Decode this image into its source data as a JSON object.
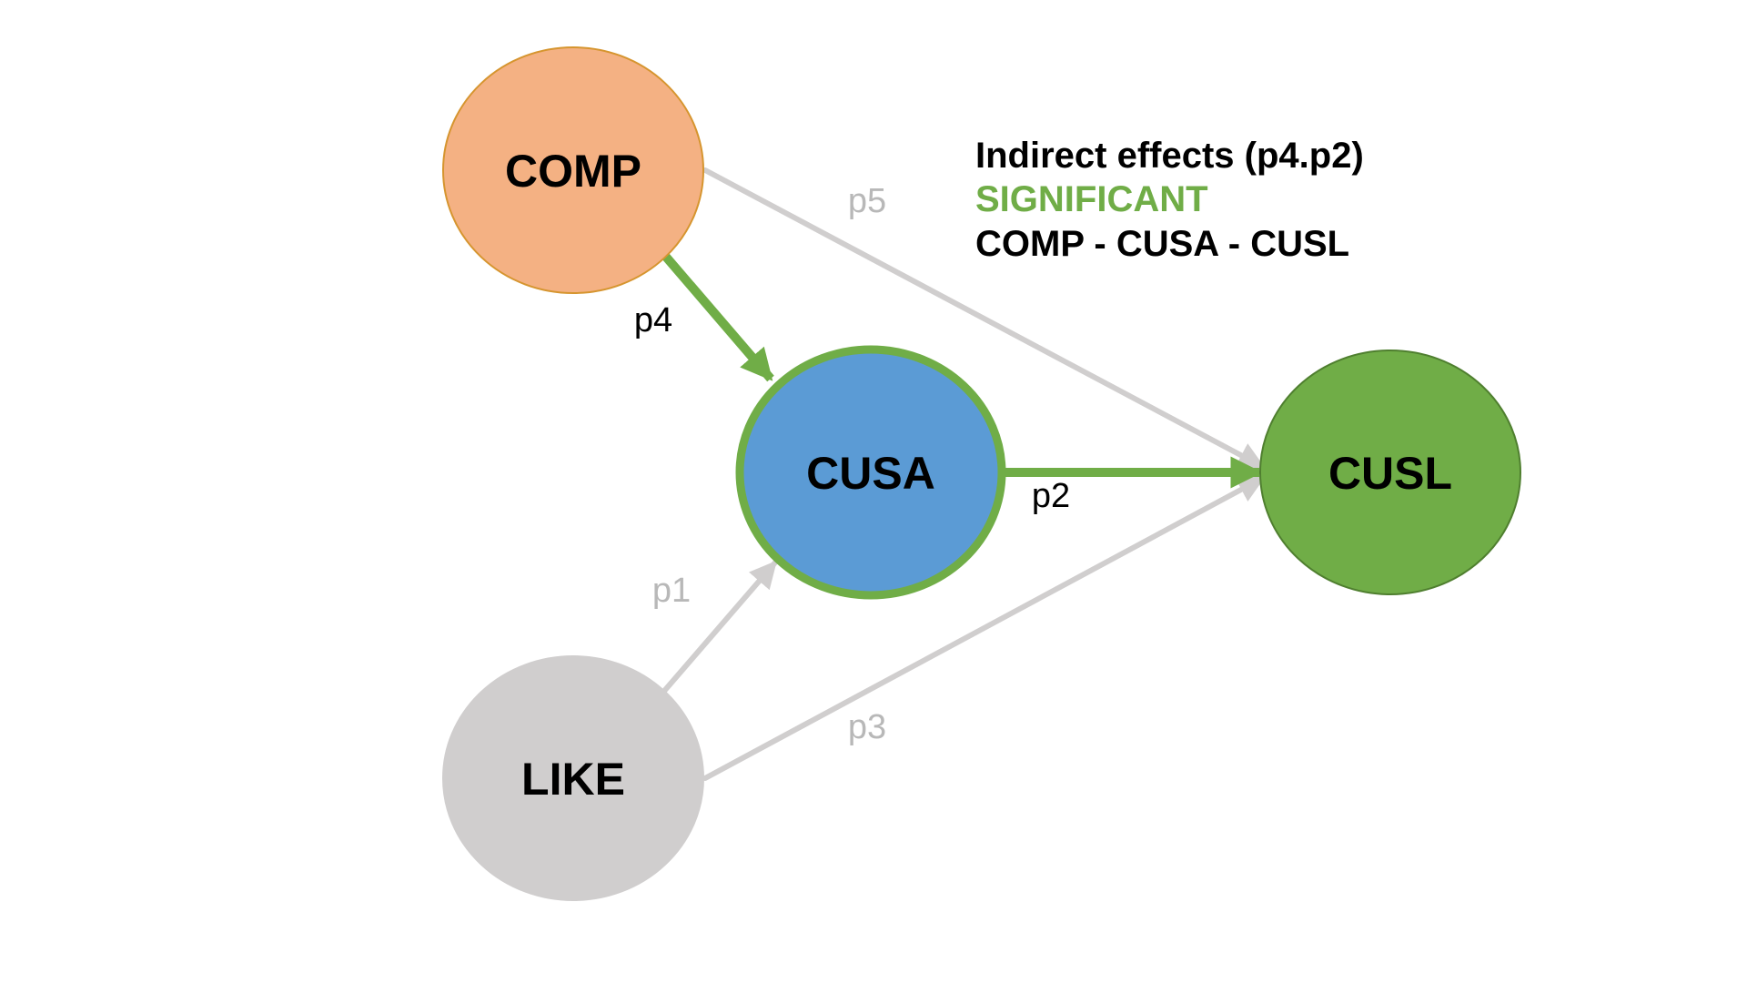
{
  "colors": {
    "significant": "#70ad47",
    "nonsignificant": "#d0cece",
    "edge_label_nonsignificant": "#b8b8b8",
    "text": "#000000"
  },
  "nodes": {
    "comp": {
      "label": "COMP",
      "fill": "#f4b183",
      "stroke": "#d6952f"
    },
    "cusa": {
      "label": "CUSA",
      "fill": "#5b9bd5",
      "stroke": "#70ad47"
    },
    "cusl": {
      "label": "CUSL",
      "fill": "#70ad47",
      "stroke": "#4f7f2f"
    },
    "like": {
      "label": "LIKE",
      "fill": "#d0cece",
      "stroke": "#d0cece"
    }
  },
  "edges": [
    {
      "id": "p1",
      "label": "p1",
      "from": "LIKE",
      "to": "CUSA",
      "significant": false
    },
    {
      "id": "p2",
      "label": "p2",
      "from": "CUSA",
      "to": "CUSL",
      "significant": true
    },
    {
      "id": "p3",
      "label": "p3",
      "from": "LIKE",
      "to": "CUSL",
      "significant": false
    },
    {
      "id": "p4",
      "label": "p4",
      "from": "COMP",
      "to": "CUSA",
      "significant": true
    },
    {
      "id": "p5",
      "label": "p5",
      "from": "COMP",
      "to": "CUSL",
      "significant": false
    }
  ],
  "caption": {
    "line1": "Indirect effects (p4.p2)",
    "line2": "SIGNIFICANT",
    "line3": "COMP - CUSA - CUSL"
  }
}
